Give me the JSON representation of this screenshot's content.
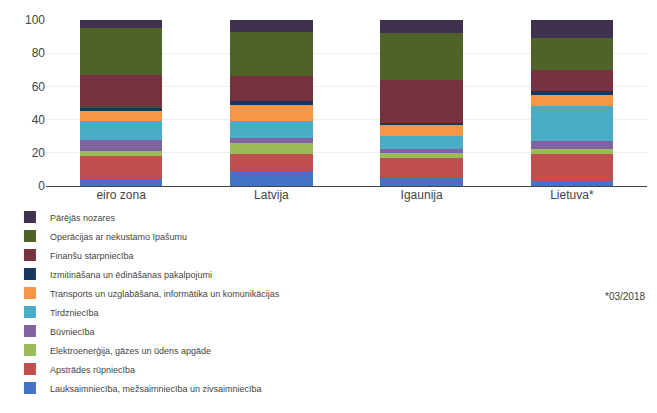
{
  "chart_data": {
    "type": "bar",
    "stacked": true,
    "categories": [
      "eiro zona",
      "Latvija",
      "Igaunija",
      "Lietuva*"
    ],
    "series": [
      {
        "name": "Lauksaimniecība, mežsaimniecība un zivsaimniecība",
        "color": "#4472c4",
        "values": [
          4,
          9,
          5,
          3
        ]
      },
      {
        "name": "Apstrādes rūpniecība",
        "color": "#c0504d",
        "values": [
          14,
          10,
          12,
          16
        ]
      },
      {
        "name": "Elektroenerģija, gāzes un ūdens apgāde",
        "color": "#9bbb59",
        "values": [
          3,
          7,
          3,
          3
        ]
      },
      {
        "name": "Būvniecība",
        "color": "#8064a2",
        "values": [
          7,
          3,
          2,
          5
        ]
      },
      {
        "name": "Tirdzniecība",
        "color": "#4bacc6",
        "values": [
          11,
          10,
          8,
          21
        ]
      },
      {
        "name": "Transports un uzglabāšana, informātika un komunikācijas",
        "color": "#f79646",
        "values": [
          6,
          10,
          7,
          7
        ]
      },
      {
        "name": "Izmitināšana un ēdināšanas pakalpojumi",
        "color": "#17375e",
        "values": [
          2,
          2,
          1,
          2
        ]
      },
      {
        "name": "Finanšu starpniecība",
        "color": "#76323f",
        "values": [
          20,
          15,
          26,
          13
        ]
      },
      {
        "name": "Operācijas ar nekustamo īpašumu",
        "color": "#4f6228",
        "values": [
          28,
          27,
          28,
          19
        ]
      },
      {
        "name": "Pārējās nozares",
        "color": "#403151",
        "values": [
          5,
          7,
          8,
          11
        ]
      }
    ],
    "ylim": [
      0,
      100
    ],
    "yticks": [
      0,
      20,
      40,
      60,
      80,
      100
    ],
    "grid": true,
    "legend": "bottom",
    "annotations": [
      "*03/2018"
    ]
  }
}
